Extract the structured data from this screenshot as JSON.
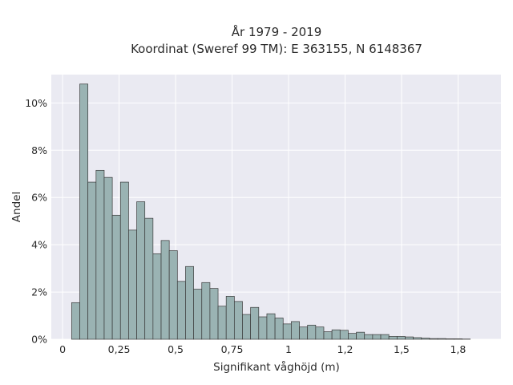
{
  "chart_data": {
    "type": "bar",
    "title_line1": "År 1979 - 2019",
    "title_line2": "Koordinat (Sweref 99 TM): E 363155, N 6148367",
    "xlabel": "Signifikant våghöjd (m)",
    "ylabel": "Andel",
    "xlim": [
      -0.05,
      1.94
    ],
    "ylim": [
      0,
      0.112
    ],
    "grid": true,
    "x_ticks": [
      0,
      0.25,
      0.5,
      0.75,
      1,
      1.25,
      1.5,
      1.75
    ],
    "x_tick_labels": [
      "0",
      "0,25",
      "0,5",
      "0,75",
      "1",
      "1,2",
      "1,5",
      "1,8"
    ],
    "y_ticks": [
      0,
      0.02,
      0.04,
      0.06,
      0.08,
      0.1
    ],
    "y_tick_labels": [
      "0%",
      "2%",
      "4%",
      "6%",
      "8%",
      "10%"
    ],
    "bin_start": 0.04,
    "bin_width": 0.036,
    "values": [
      0.0155,
      0.108,
      0.0665,
      0.0715,
      0.0685,
      0.0525,
      0.0665,
      0.0462,
      0.0582,
      0.0512,
      0.0362,
      0.0418,
      0.0375,
      0.0245,
      0.0308,
      0.0212,
      0.024,
      0.0215,
      0.014,
      0.0182,
      0.016,
      0.0105,
      0.0135,
      0.0095,
      0.0108,
      0.009,
      0.0065,
      0.0075,
      0.0052,
      0.006,
      0.0052,
      0.0032,
      0.004,
      0.0038,
      0.0025,
      0.003,
      0.002,
      0.002,
      0.002,
      0.0012,
      0.0012,
      0.001,
      0.0007,
      0.0005,
      0.0003,
      0.0003,
      0.0002,
      0.0002,
      0.0001
    ],
    "colors": {
      "bar_fill": "#9ab3b3",
      "bar_edge": "#3a3a3a",
      "plot_bg": "#eaeaf2",
      "grid": "#ffffff"
    }
  }
}
